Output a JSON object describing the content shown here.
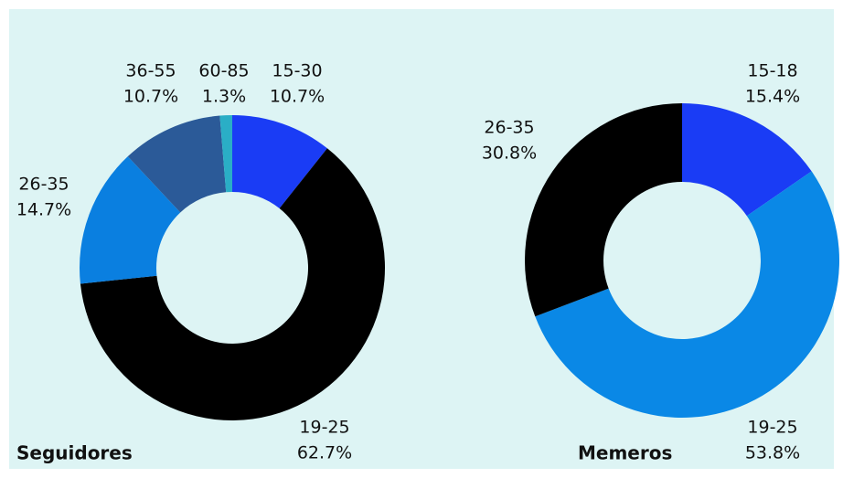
{
  "chart_data": [
    {
      "type": "pie",
      "title": "Seguidores",
      "categories": [
        "15-30",
        "19-25",
        "26-35",
        "36-55",
        "60-85"
      ],
      "values": [
        10.7,
        62.7,
        14.7,
        10.7,
        1.3
      ],
      "value_labels": [
        "10.7%",
        "62.7%",
        "14.7%",
        "10.7%",
        "1.3%"
      ],
      "colors": [
        "#1a3cf5",
        "#000000",
        "#0a7fe0",
        "#2b5a98",
        "#2aaec6"
      ]
    },
    {
      "type": "pie",
      "title": "Memeros",
      "categories": [
        "15-18",
        "19-25",
        "26-35"
      ],
      "values": [
        15.4,
        53.8,
        30.8
      ],
      "value_labels": [
        "15.4%",
        "53.8%",
        "30.8%"
      ],
      "colors": [
        "#1a3cf5",
        "#0a88e6",
        "#000000"
      ]
    }
  ]
}
